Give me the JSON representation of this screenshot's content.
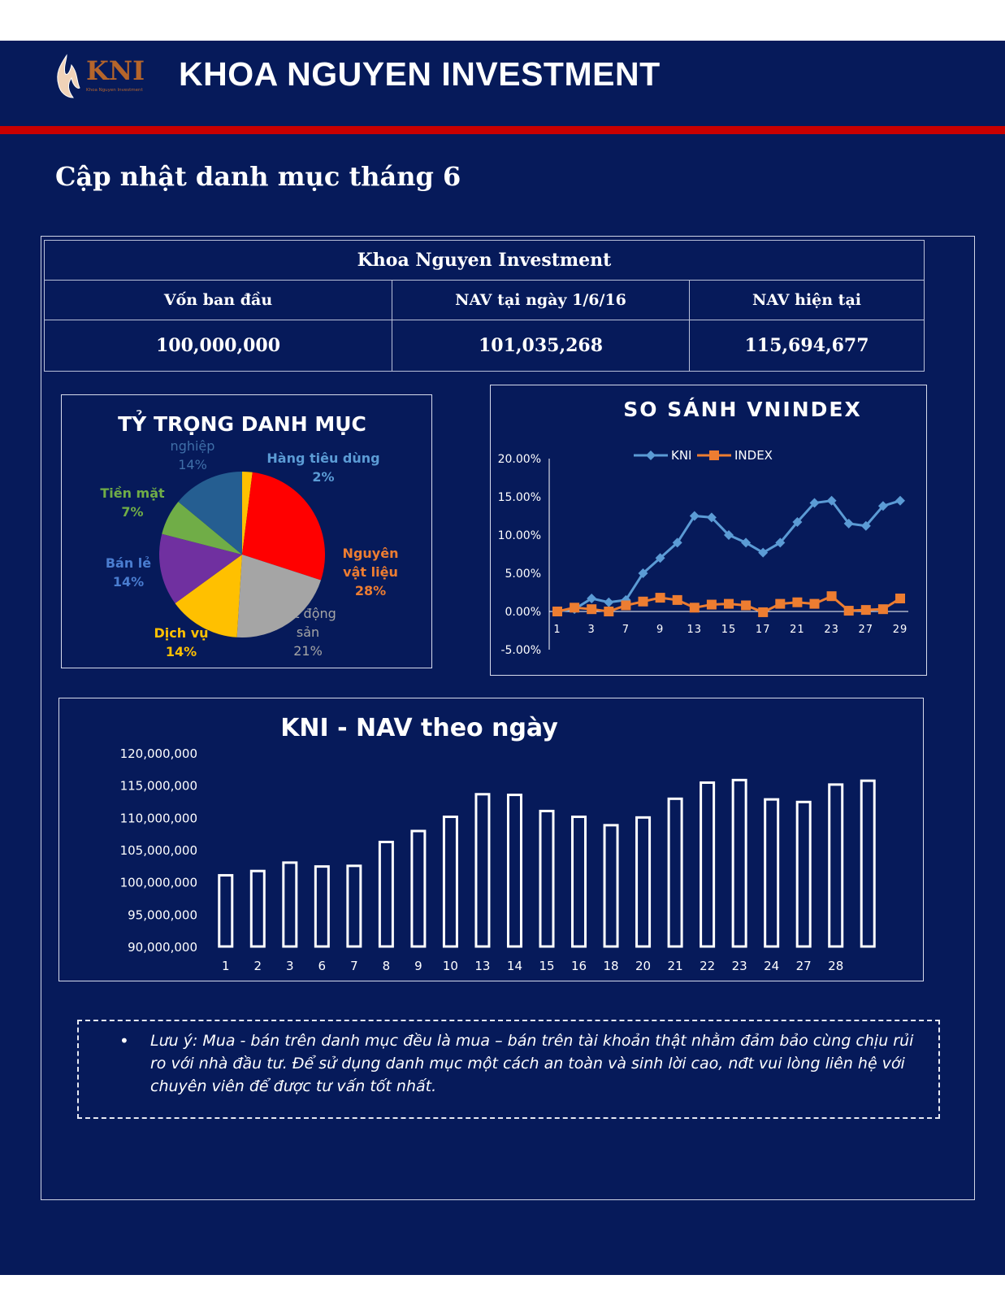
{
  "header": {
    "logo_text": "KNI",
    "logo_tagline": "Khoa Nguyen Investment",
    "company_name": "KHOA NGUYEN INVESTMENT"
  },
  "page_title": "Cập nhật danh mục tháng 6",
  "nav_table": {
    "caption": "Khoa Nguyen Investment",
    "headers": [
      "Vốn ban đầu",
      "NAV tại ngày 1/6/16",
      "NAV hiện tại"
    ],
    "values": [
      "100,000,000",
      "101,035,268",
      "115,694,677"
    ]
  },
  "chart_data": [
    {
      "type": "pie",
      "title": "TỶ TRỌNG DANH MỤC",
      "slices": [
        {
          "label": "Hàng tiêu dùng",
          "percent_label": "2%",
          "value": 2,
          "color": "#ffc000"
        },
        {
          "label": "Nguyên vật liệu",
          "percent_label": "28%",
          "value": 28,
          "color": "#ff0000"
        },
        {
          "label": "Bất động sản",
          "percent_label": "21%",
          "value": 21,
          "color": "#a5a5a5"
        },
        {
          "label": "Dịch vụ",
          "percent_label": "14%",
          "value": 14,
          "color": "#ffc000"
        },
        {
          "label": "Bán lẻ",
          "percent_label": "14%",
          "value": 14,
          "color": "#7030a0"
        },
        {
          "label": "Tiền mặt",
          "percent_label": "7%",
          "value": 7,
          "color": "#70ad47"
        },
        {
          "label": "Công nghiệp",
          "percent_label": "14%",
          "value": 14,
          "color": "#255e91"
        }
      ],
      "visible_label_text": {
        "industry_partial": "nghiệp",
        "consumer": "Hàng tiêu dùng",
        "materials_line1": "Nguyên",
        "materials_line2": "vật liệu",
        "realestate_line1": "t động",
        "realestate_line2": "sản",
        "services": "Dịch vụ",
        "retail": "Bán lẻ",
        "cash": "Tiền mặt"
      }
    },
    {
      "type": "line",
      "title": "SO SÁNH VNINDEX",
      "x": [
        "1",
        "2",
        "3",
        "6",
        "7",
        "8",
        "9",
        "10",
        "13",
        "14",
        "15",
        "16",
        "17",
        "20",
        "21",
        "22",
        "23",
        "24",
        "27",
        "28",
        "29"
      ],
      "xtick_labels": [
        "1",
        "3",
        "7",
        "9",
        "13",
        "15",
        "17",
        "21",
        "23",
        "27",
        "29"
      ],
      "yticks": [
        "20.00%",
        "15.00%",
        "10.00%",
        "5.00%",
        "0.00%",
        "-5.00%"
      ],
      "ylim": [
        -5,
        20
      ],
      "series": [
        {
          "name": "KNI",
          "color": "#5b9bd5",
          "values": [
            0,
            0.3,
            1.7,
            1.2,
            1.5,
            5,
            7,
            9,
            12.5,
            12.3,
            10,
            9,
            7.7,
            9,
            11.7,
            14.2,
            14.5,
            11.5,
            11.2,
            13.8,
            14.5
          ]
        },
        {
          "name": "INDEX",
          "color": "#ed7d31",
          "values": [
            0,
            0.5,
            0.3,
            0,
            0.8,
            1.3,
            1.8,
            1.5,
            0.5,
            0.9,
            1,
            0.8,
            -0.1,
            1,
            1.2,
            1,
            2,
            0.1,
            0.2,
            0.3,
            1.7
          ]
        }
      ],
      "legend": "top"
    },
    {
      "type": "bar",
      "title": "KNI - NAV theo ngày",
      "categories": [
        "1",
        "2",
        "3",
        "6",
        "7",
        "8",
        "9",
        "10",
        "13",
        "14",
        "15",
        "16",
        "18",
        "20",
        "21",
        "22",
        "23",
        "24",
        "27",
        "28",
        ""
      ],
      "values": [
        101035268,
        101700000,
        103000000,
        102400000,
        102500000,
        106200000,
        107900000,
        110100000,
        113600000,
        113500000,
        111000000,
        110100000,
        108800000,
        110000000,
        112900000,
        115400000,
        115800000,
        112800000,
        112400000,
        115100000,
        115694677
      ],
      "yticks": [
        "120,000,000",
        "115,000,000",
        "110,000,000",
        "105,000,000",
        "100,000,000",
        "95,000,000",
        "90,000,000"
      ],
      "ylim": [
        90000000,
        120000000
      ]
    }
  ],
  "note": {
    "text": "Lưu ý: Mua - bán trên danh mục đều là mua – bán trên tài khoản thật nhằm đảm bảo cùng chịu rủi ro với nhà đầu tư. Để sử dụng danh mục một cách an toàn và sinh lời cao, nđt vui lòng liên hệ với chuyên viên để được tư vấn tốt nhất."
  }
}
